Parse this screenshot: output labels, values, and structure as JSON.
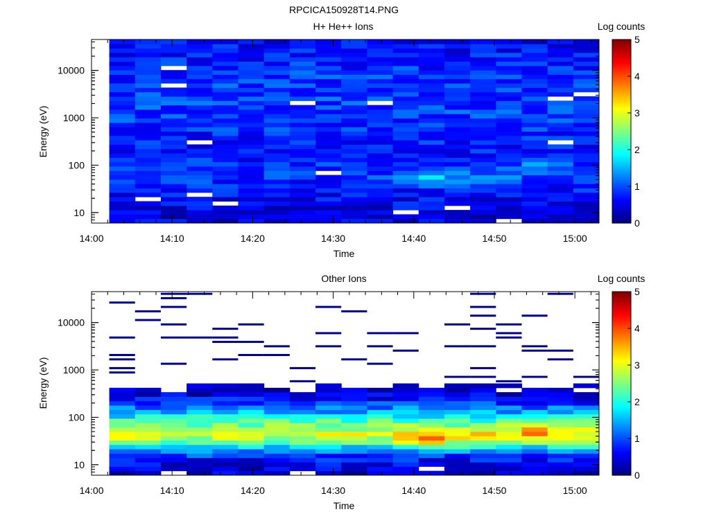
{
  "figure_title": "RPCICA150928T14.PNG",
  "colors": {
    "colormap": [
      "#00007f",
      "#0000ff",
      "#007fff",
      "#00ffff",
      "#7fff7f",
      "#ffff00",
      "#ff7f00",
      "#ff0000",
      "#7f0000"
    ],
    "axes": "#000000",
    "background": "#ffffff"
  },
  "chart_data": [
    {
      "type": "heatmap",
      "title": "H+ He++ Ions",
      "xlabel": "Time",
      "ylabel": "Energy (eV)",
      "x_ticks": [
        "14:00",
        "14:10",
        "14:20",
        "14:30",
        "14:40",
        "14:50",
        "15:00"
      ],
      "x_tick_minutes": [
        0,
        10,
        20,
        30,
        40,
        50,
        60
      ],
      "xlim_minutes": [
        0,
        63
      ],
      "time_columns_minutes": [
        2.2,
        5.4,
        8.6,
        11.8,
        15.0,
        18.2,
        21.4,
        24.6,
        27.8,
        31.0,
        34.2,
        37.4,
        40.6,
        43.8,
        47.0,
        50.2,
        53.4,
        56.6,
        59.8,
        63.0
      ],
      "ylim_eV": [
        6,
        45000
      ],
      "y_scale": "log",
      "y_ticks_eV": [
        10,
        100,
        1000,
        10000
      ],
      "y_tick_labels": [
        "10",
        "100",
        "1000",
        "10000"
      ],
      "colorbar": {
        "label": "Log counts",
        "range": [
          0,
          5
        ],
        "ticks": [
          "0",
          "1",
          "2",
          "3",
          "4",
          "5"
        ]
      },
      "energy_band_profile": {
        "energy_eV": [
          8,
          12,
          20,
          35,
          60,
          100,
          200,
          500,
          1000,
          3000,
          10000,
          40000
        ],
        "mean_log_counts": [
          0.45,
          0.55,
          0.6,
          0.75,
          0.9,
          0.8,
          0.7,
          0.8,
          0.9,
          0.95,
          0.85,
          0.6
        ]
      },
      "hotspots": [
        {
          "time_minutes": 42,
          "energy_eV": 55,
          "log_counts": 1.8
        },
        {
          "time_minutes": 55,
          "energy_eV": 90,
          "log_counts": 1.5
        },
        {
          "time_minutes": 50,
          "energy_eV": 60,
          "log_counts": 1.3
        }
      ]
    },
    {
      "type": "heatmap",
      "title": "Other Ions",
      "xlabel": "Time",
      "ylabel": "Energy (eV)",
      "x_ticks": [
        "14:00",
        "14:10",
        "14:20",
        "14:30",
        "14:40",
        "14:50",
        "15:00"
      ],
      "x_tick_minutes": [
        0,
        10,
        20,
        30,
        40,
        50,
        60
      ],
      "xlim_minutes": [
        0,
        63
      ],
      "time_columns_minutes": [
        2.2,
        5.4,
        8.6,
        11.8,
        15.0,
        18.2,
        21.4,
        24.6,
        27.8,
        31.0,
        34.2,
        37.4,
        40.6,
        43.8,
        47.0,
        50.2,
        53.4,
        56.6,
        59.8,
        63.0
      ],
      "ylim_eV": [
        6,
        45000
      ],
      "y_scale": "log",
      "y_ticks_eV": [
        10,
        100,
        1000,
        10000
      ],
      "y_tick_labels": [
        "10",
        "100",
        "1000",
        "10000"
      ],
      "colorbar": {
        "label": "Log counts",
        "range": [
          0,
          5
        ],
        "ticks": [
          "0",
          "1",
          "2",
          "3",
          "4",
          "5"
        ]
      },
      "energy_band_profile": {
        "energy_eV": [
          8,
          12,
          17,
          22,
          30,
          40,
          55,
          80,
          120,
          180,
          250,
          350,
          500
        ],
        "mean_log_counts": [
          0.45,
          0.6,
          1.0,
          1.6,
          2.4,
          2.9,
          2.8,
          2.3,
          1.6,
          1.0,
          0.6,
          0.3,
          0.1
        ]
      },
      "hotspots": [
        {
          "time_minutes": 42,
          "energy_eV": 35,
          "log_counts": 4.0
        },
        {
          "time_minutes": 56,
          "energy_eV": 55,
          "log_counts": 3.7
        },
        {
          "time_minutes": 49,
          "energy_eV": 40,
          "log_counts": 3.5
        }
      ],
      "sparse_high_energy_counts": "isolated single-count lines between 500 and 40000 eV"
    }
  ]
}
